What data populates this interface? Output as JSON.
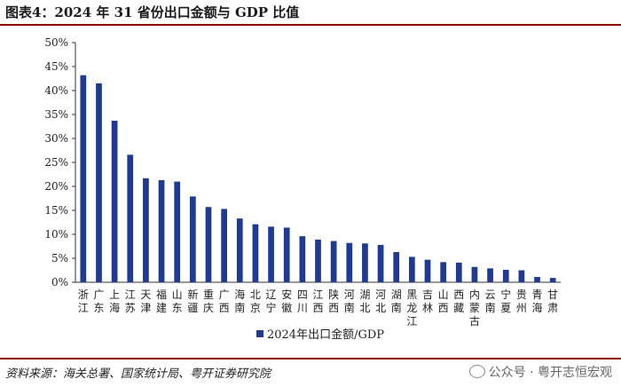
{
  "title": "图表4：2024 年 31 省份出口金额与 GDP 比值",
  "source": "资料来源：海关总署、国家统计局、粤开证券研究院",
  "watermark": "公众号 · 粤开志恒宏观",
  "colors": {
    "bar": "#1f3a93",
    "rule": "#8b0000",
    "axis": "#333333"
  },
  "chart_data": {
    "type": "bar",
    "categories": [
      "浙江",
      "广东",
      "上海",
      "江苏",
      "天津",
      "福建",
      "山东",
      "新疆",
      "重庆",
      "广西",
      "海南",
      "北京",
      "辽宁",
      "安徽",
      "四川",
      "江西",
      "陕西",
      "河南",
      "湖北",
      "河北",
      "湖南",
      "黑龙江",
      "吉林",
      "山西",
      "西藏",
      "内蒙古",
      "云南",
      "宁夏",
      "贵州",
      "青海",
      "甘肃"
    ],
    "series": [
      {
        "name": "2024年出口金额/GDP",
        "values": [
          43.2,
          41.5,
          33.7,
          26.6,
          21.7,
          21.3,
          21.0,
          17.9,
          15.7,
          15.3,
          13.3,
          12.1,
          11.6,
          11.4,
          9.6,
          8.9,
          8.6,
          8.2,
          8.1,
          7.8,
          6.3,
          5.3,
          4.7,
          4.2,
          4.1,
          3.2,
          2.9,
          2.6,
          2.5,
          1.1,
          0.9
        ]
      }
    ],
    "yticks": [
      "0%",
      "5%",
      "10%",
      "15%",
      "20%",
      "25%",
      "30%",
      "35%",
      "40%",
      "45%",
      "50%"
    ],
    "ylim": [
      0,
      50
    ],
    "legend_position": "bottom"
  }
}
